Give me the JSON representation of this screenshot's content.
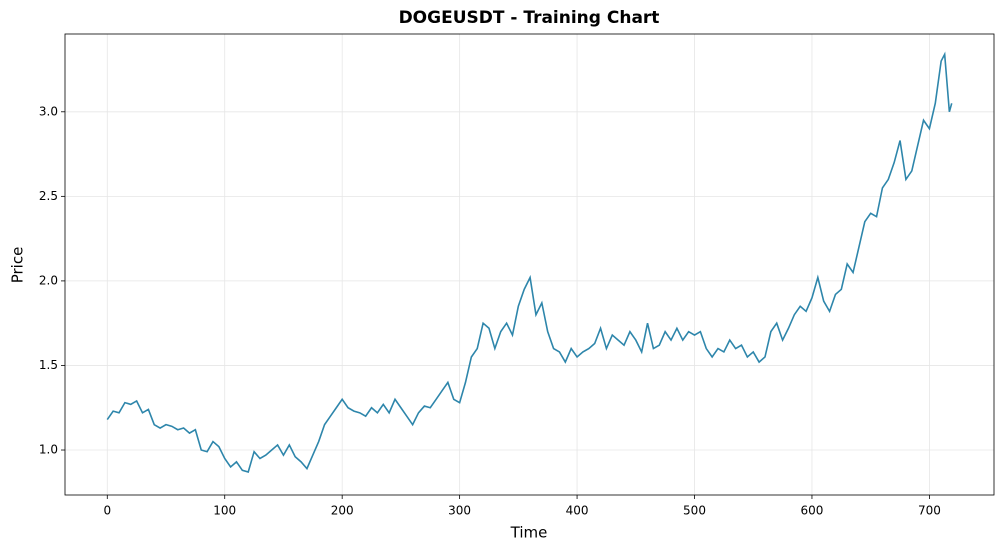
{
  "chart_data": {
    "type": "line",
    "title": "DOGEUSDT - Training Chart",
    "x_label": "Time",
    "y_label": "Price",
    "x": [
      0,
      5,
      10,
      15,
      20,
      25,
      30,
      35,
      40,
      45,
      50,
      55,
      60,
      65,
      70,
      75,
      80,
      85,
      90,
      95,
      100,
      105,
      110,
      115,
      120,
      125,
      130,
      135,
      140,
      145,
      150,
      155,
      160,
      165,
      170,
      175,
      180,
      185,
      190,
      195,
      200,
      205,
      210,
      215,
      220,
      225,
      230,
      235,
      240,
      245,
      250,
      255,
      260,
      265,
      270,
      275,
      280,
      285,
      290,
      295,
      300,
      305,
      310,
      315,
      320,
      325,
      330,
      335,
      340,
      345,
      350,
      355,
      360,
      365,
      370,
      375,
      380,
      385,
      390,
      395,
      400,
      405,
      410,
      415,
      420,
      425,
      430,
      435,
      440,
      445,
      450,
      455,
      460,
      465,
      470,
      475,
      480,
      485,
      490,
      495,
      500,
      505,
      510,
      515,
      520,
      525,
      530,
      535,
      540,
      545,
      550,
      555,
      560,
      565,
      570,
      575,
      580,
      585,
      590,
      595,
      600,
      605,
      610,
      615,
      620,
      625,
      630,
      635,
      640,
      645,
      650,
      655,
      660,
      665,
      670,
      675,
      680,
      685,
      690,
      695,
      700,
      705,
      710,
      713,
      717,
      719
    ],
    "series": [
      {
        "name": "DOGEUSDT",
        "color": "#2e86ab",
        "values": [
          1.18,
          1.23,
          1.22,
          1.28,
          1.27,
          1.29,
          1.22,
          1.24,
          1.15,
          1.13,
          1.15,
          1.14,
          1.12,
          1.13,
          1.1,
          1.12,
          1.0,
          0.99,
          1.05,
          1.02,
          0.95,
          0.9,
          0.93,
          0.88,
          0.87,
          0.99,
          0.95,
          0.97,
          1.0,
          1.03,
          0.97,
          1.03,
          0.96,
          0.93,
          0.89,
          0.97,
          1.05,
          1.15,
          1.2,
          1.25,
          1.3,
          1.25,
          1.23,
          1.22,
          1.2,
          1.25,
          1.22,
          1.27,
          1.22,
          1.3,
          1.25,
          1.2,
          1.15,
          1.22,
          1.26,
          1.25,
          1.3,
          1.35,
          1.4,
          1.3,
          1.28,
          1.4,
          1.55,
          1.6,
          1.75,
          1.72,
          1.6,
          1.7,
          1.75,
          1.68,
          1.85,
          1.95,
          2.02,
          1.8,
          1.87,
          1.7,
          1.6,
          1.58,
          1.52,
          1.6,
          1.55,
          1.58,
          1.6,
          1.63,
          1.72,
          1.6,
          1.68,
          1.65,
          1.62,
          1.7,
          1.65,
          1.58,
          1.75,
          1.6,
          1.62,
          1.7,
          1.65,
          1.72,
          1.65,
          1.7,
          1.68,
          1.7,
          1.6,
          1.55,
          1.6,
          1.58,
          1.65,
          1.6,
          1.62,
          1.55,
          1.58,
          1.52,
          1.55,
          1.7,
          1.75,
          1.65,
          1.72,
          1.8,
          1.85,
          1.82,
          1.9,
          2.02,
          1.88,
          1.82,
          1.92,
          1.95,
          2.1,
          2.05,
          2.2,
          2.35,
          2.4,
          2.38,
          2.55,
          2.6,
          2.7,
          2.83,
          2.6,
          2.65,
          2.8,
          2.95,
          2.9,
          3.05,
          3.3,
          3.34,
          3.0,
          3.05
        ]
      }
    ],
    "xlim": [
      -36,
      755
    ],
    "ylim": [
      0.734,
      3.46
    ],
    "xticks": [
      0,
      100,
      200,
      300,
      400,
      500,
      600,
      700
    ],
    "yticks": [
      {
        "value": 1,
        "label": "1.0"
      },
      1.5,
      {
        "value": 2,
        "label": "2.0"
      },
      2.5,
      {
        "value": 3,
        "label": "3.0"
      }
    ],
    "grid": true
  }
}
